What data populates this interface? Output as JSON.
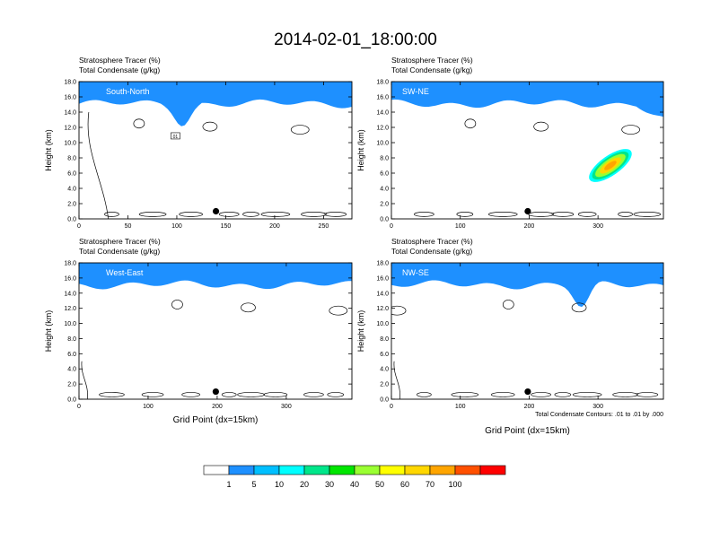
{
  "title": "2014-02-01_18:00:00",
  "footnote": "Total Condensate Contours: .01 to .01 by .000",
  "colorbar": {
    "colors": [
      "#ffffff",
      "#1e90ff",
      "#00bfff",
      "#00ffff",
      "#00e68a",
      "#00e600",
      "#9aff32",
      "#ffff00",
      "#ffd700",
      "#ffa500",
      "#ff5000",
      "#ff0000"
    ],
    "labels": [
      "1",
      "5",
      "10",
      "20",
      "30",
      "40",
      "50",
      "60",
      "70",
      "100"
    ]
  },
  "chart_data": [
    {
      "type": "heatmap",
      "panel": "South-North",
      "header_lines": [
        "Stratosphere Tracer   (%)",
        "Total Condensate   (g/kg)"
      ],
      "ylabel": "Height (km)",
      "xlabel": "",
      "xlim": [
        0,
        279
      ],
      "ylim": [
        0,
        18
      ],
      "xticks": [
        "0",
        "50",
        "100",
        "150",
        "200",
        "250"
      ],
      "xtick_values": [
        0,
        50,
        100,
        150,
        200,
        250
      ],
      "yticks": [
        "0.0",
        "2.0",
        "4.0",
        "6.0",
        "8.0",
        "10.0",
        "12.0",
        "14.0",
        "16.0",
        "18.0"
      ],
      "tropopause_km": 15.6,
      "marker_x": 140,
      "annotation": "01"
    },
    {
      "type": "heatmap",
      "panel": "SW-NE",
      "header_lines": [
        "Stratosphere Tracer   (%)",
        "Total Condensate   (g/kg)"
      ],
      "ylabel": "Height (km)",
      "xlabel": "",
      "xlim": [
        0,
        395
      ],
      "ylim": [
        0,
        18
      ],
      "xticks": [
        "0",
        "100",
        "200",
        "300"
      ],
      "xtick_values": [
        0,
        100,
        200,
        300
      ],
      "yticks": [
        "0.0",
        "2.0",
        "4.0",
        "6.0",
        "8.0",
        "10.0",
        "12.0",
        "14.0",
        "16.0",
        "18.0"
      ],
      "tropopause_km": 15.6,
      "marker_x": 198
    },
    {
      "type": "heatmap",
      "panel": "West-East",
      "header_lines": [
        "Stratosphere Tracer   (%)",
        "Total Condensate   (g/kg)"
      ],
      "ylabel": "Height (km)",
      "xlabel": "Grid Point (dx=15km)",
      "xlim": [
        0,
        395
      ],
      "ylim": [
        0,
        18
      ],
      "xticks": [
        "0",
        "100",
        "200",
        "300"
      ],
      "xtick_values": [
        0,
        100,
        200,
        300
      ],
      "yticks": [
        "0.0",
        "2.0",
        "4.0",
        "6.0",
        "8.0",
        "10.0",
        "12.0",
        "14.0",
        "16.0",
        "18.0"
      ],
      "tropopause_km": 15.6,
      "marker_x": 198
    },
    {
      "type": "heatmap",
      "panel": "NW-SE",
      "header_lines": [
        "Stratosphere Tracer   (%)",
        "Total Condensate   (g/kg)"
      ],
      "ylabel": "Height (km)",
      "xlabel": "Grid Point (dx=15km)",
      "xlim": [
        0,
        395
      ],
      "ylim": [
        0,
        18
      ],
      "xticks": [
        "0",
        "100",
        "200",
        "300"
      ],
      "xtick_values": [
        0,
        100,
        200,
        300
      ],
      "yticks": [
        "0.0",
        "2.0",
        "4.0",
        "6.0",
        "8.0",
        "10.0",
        "12.0",
        "14.0",
        "16.0",
        "18.0"
      ],
      "tropopause_km": 15.6,
      "marker_x": 198
    }
  ]
}
